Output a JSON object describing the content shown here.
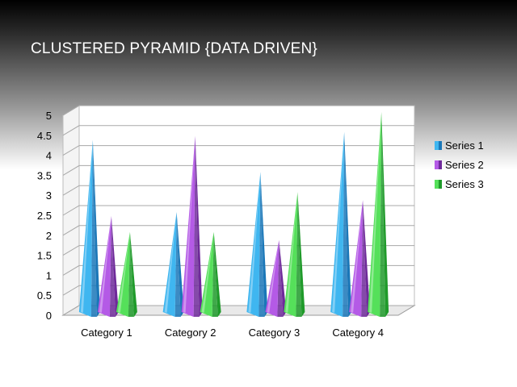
{
  "slide": {
    "title": "CLUSTERED PYRAMID {DATA DRIVEN}"
  },
  "chart_data": {
    "type": "bar",
    "style": "3d-clustered-pyramid",
    "categories": [
      "Category 1",
      "Category 2",
      "Category 3",
      "Category 4"
    ],
    "series": [
      {
        "name": "Series 1",
        "values": [
          4.3,
          2.5,
          3.5,
          4.5
        ],
        "color": "#3fb6f0",
        "dark": "#1a77b8"
      },
      {
        "name": "Series 2",
        "values": [
          2.4,
          4.4,
          1.8,
          2.8
        ],
        "color": "#b45ae6",
        "dark": "#6f2a9a"
      },
      {
        "name": "Series 3",
        "values": [
          2.0,
          2.0,
          3.0,
          5.0
        ],
        "color": "#55e05a",
        "dark": "#1f9a2a"
      }
    ],
    "ylim": [
      0,
      5
    ],
    "yticks": [
      "0",
      "0.5",
      "1",
      "1.5",
      "2",
      "2.5",
      "3",
      "3.5",
      "4",
      "4.5",
      "5"
    ],
    "grid": true,
    "legend": "right"
  }
}
